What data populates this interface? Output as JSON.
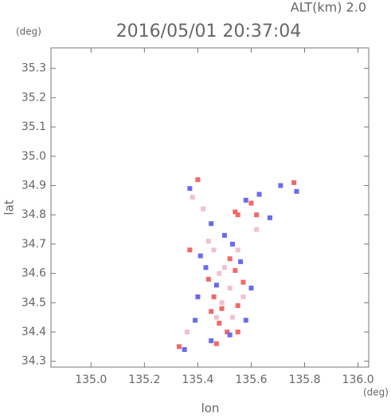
{
  "chart_data": {
    "type": "scatter",
    "title": "2016/05/01 20:37:04",
    "subtitle": "ALT(km) 2.0",
    "y_unit": "(deg)",
    "x_unit": "(deg)",
    "xlabel": "lon",
    "ylabel": "lat",
    "xlim": [
      134.85,
      136.04
    ],
    "ylim": [
      34.28,
      35.37
    ],
    "xticks": [
      {
        "value": 135.0,
        "label": "135.0"
      },
      135.2,
      135.4,
      135.6,
      135.8,
      {
        "value": 136.0,
        "label": "136.0"
      }
    ],
    "yticks": [
      34.3,
      34.4,
      34.5,
      34.6,
      34.7,
      34.8,
      34.9,
      {
        "value": 35.0,
        "label": "35.0"
      },
      35.1,
      35.2,
      35.3
    ],
    "series": [
      {
        "color": "#f06868",
        "x": [
          135.4,
          135.54,
          135.55,
          135.52,
          135.54,
          135.46,
          135.49,
          135.55,
          135.48,
          135.51,
          135.55,
          135.76,
          135.33,
          135.44,
          135.37,
          135.6,
          135.47,
          135.62,
          135.57,
          135.45
        ],
        "values": [
          34.92,
          34.81,
          34.8,
          34.65,
          34.61,
          34.52,
          34.48,
          34.49,
          34.43,
          34.4,
          34.4,
          34.91,
          34.35,
          34.58,
          34.68,
          34.84,
          34.36,
          34.8,
          34.57,
          34.47
        ]
      },
      {
        "color": "#6a6af0",
        "x": [
          135.37,
          135.58,
          135.67,
          135.71,
          135.77,
          135.43,
          135.47,
          135.41,
          135.53,
          135.4,
          135.58,
          135.52,
          135.45,
          135.35,
          135.39,
          135.6,
          135.45,
          135.63,
          135.5,
          135.56
        ],
        "values": [
          34.89,
          34.85,
          34.79,
          34.9,
          34.88,
          34.62,
          34.56,
          34.66,
          34.7,
          34.52,
          34.44,
          34.39,
          34.37,
          34.34,
          34.44,
          34.55,
          34.77,
          34.87,
          34.73,
          34.64
        ]
      },
      {
        "color": "#f0c0d4",
        "x": [
          135.46,
          135.5,
          135.48,
          135.52,
          135.44,
          135.55,
          135.49,
          135.53,
          135.42,
          135.38,
          135.62,
          135.57,
          135.47,
          135.36
        ],
        "values": [
          34.68,
          34.62,
          34.6,
          34.55,
          34.71,
          34.68,
          34.5,
          34.45,
          34.82,
          34.86,
          34.75,
          34.52,
          34.45,
          34.4
        ]
      }
    ]
  }
}
